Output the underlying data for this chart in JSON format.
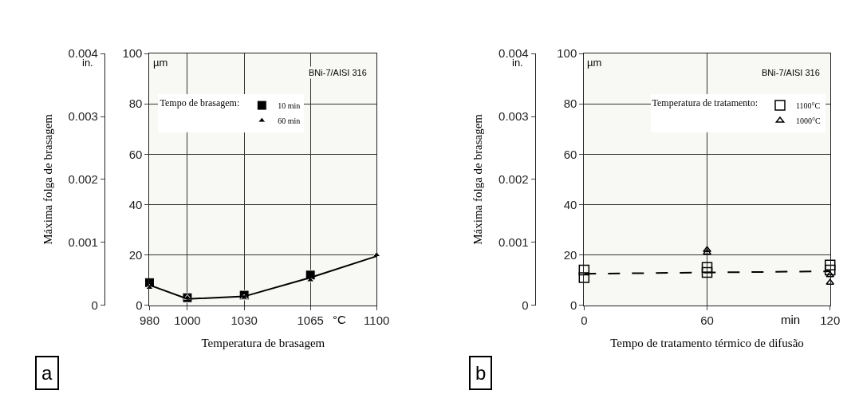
{
  "chart_data": [
    {
      "type": "scatter",
      "xlabel": "Temperatura de brasagem",
      "y2label": "Máxima folga de brasagem",
      "legend_title": "Tempo de brasagem:",
      "annotations": [
        "BNi-7/AISI 316",
        "µm",
        "in.",
        "°C",
        "a"
      ],
      "x": [
        980,
        1000,
        1030,
        1065,
        1100
      ],
      "series": [
        {
          "name": "10 min",
          "color": "#000000",
          "marker": "square",
          "values": [
            9,
            3,
            4,
            12,
            null
          ]
        },
        {
          "name": "60 min",
          "color": "#000000",
          "marker": "triangle",
          "values": [
            7,
            3,
            3,
            10,
            20
          ]
        },
        {
          "type": "line",
          "color": "#000000",
          "marker": "none",
          "line_style": "solid",
          "values": [
            8,
            2.5,
            3.5,
            11,
            19.5
          ]
        }
      ],
      "xlim": [
        980,
        1100
      ],
      "xticks": [
        980,
        1000,
        1030,
        1065,
        1100
      ],
      "ylim": [
        0,
        100
      ],
      "yticks": [
        0,
        20,
        40,
        60,
        80,
        100
      ],
      "y2lim": [
        0,
        0.004
      ],
      "y2ticks": [
        0,
        0.001,
        0.002,
        0.003,
        0.004
      ],
      "grid": true,
      "legend": "top"
    },
    {
      "type": "scatter",
      "xlabel": "Tempo de tratamento térmico de difusão",
      "y2label": "Máxima folga de brasagem",
      "legend_title": "Temperatura de tratamento:",
      "annotations": [
        "BNi-7/AISI 316",
        "µm",
        "in.",
        "min",
        "b"
      ],
      "series": [
        {
          "name": "1100°C",
          "color": "#000000",
          "marker": "square-open",
          "x": [
            0,
            0,
            60,
            60,
            120,
            120
          ],
          "values": [
            14,
            11,
            15,
            13,
            16,
            14
          ]
        },
        {
          "name": "1000°C",
          "color": "#000000",
          "marker": "triangle-open",
          "x": [
            60,
            60,
            120,
            120
          ],
          "values": [
            22,
            21,
            12,
            9
          ]
        },
        {
          "type": "line",
          "color": "#000000",
          "marker": "none",
          "line_style": "dashed",
          "x": [
            0,
            120
          ],
          "values": [
            12.5,
            13.5
          ]
        }
      ],
      "xlim": [
        0,
        120
      ],
      "xticks": [
        0,
        60,
        120
      ],
      "ylim": [
        0,
        100
      ],
      "yticks": [
        0,
        20,
        40,
        60,
        80,
        100
      ],
      "y2lim": [
        0,
        0.004
      ],
      "y2ticks": [
        0,
        0.001,
        0.002,
        0.003,
        0.004
      ],
      "grid": true,
      "legend": "top right"
    }
  ]
}
